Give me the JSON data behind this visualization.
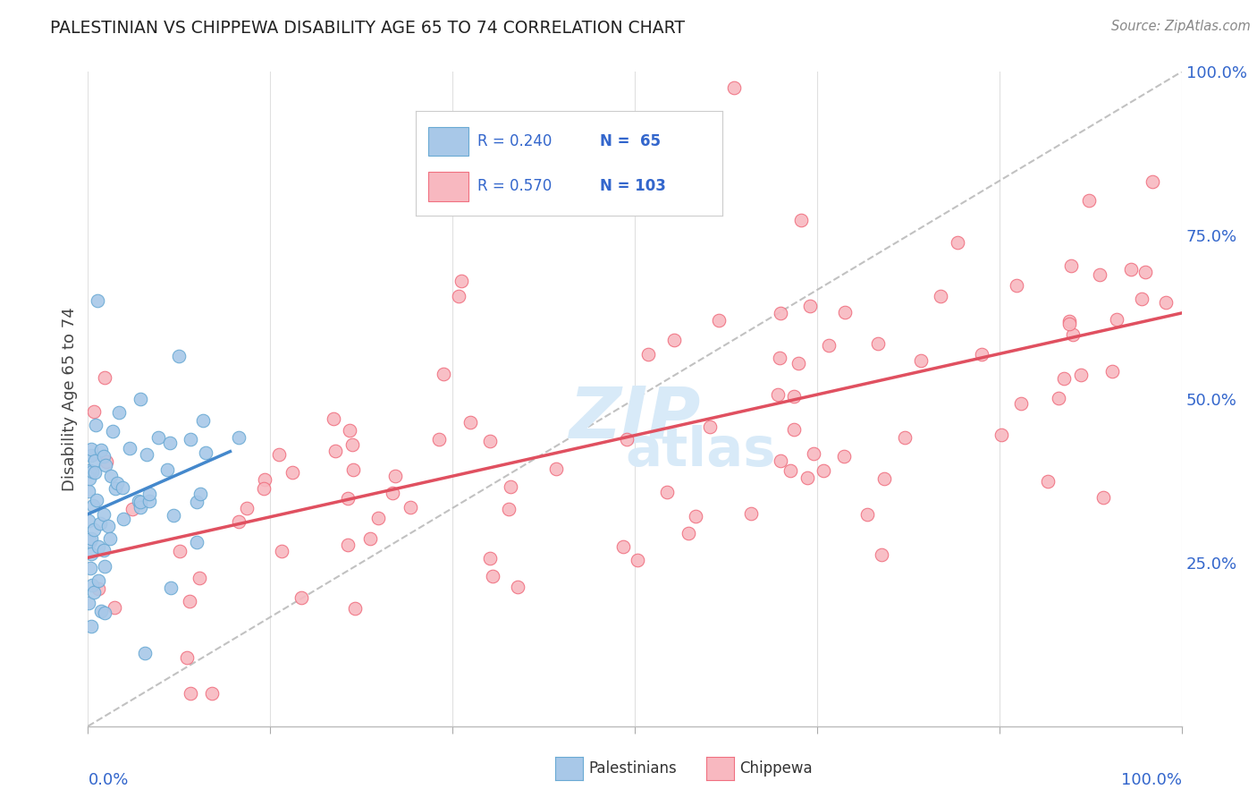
{
  "title": "PALESTINIAN VS CHIPPEWA DISABILITY AGE 65 TO 74 CORRELATION CHART",
  "source": "Source: ZipAtlas.com",
  "ylabel": "Disability Age 65 to 74",
  "legend1_label": "Palestinians",
  "legend2_label": "Chippewa",
  "R1": 0.24,
  "N1": 65,
  "R2": 0.57,
  "N2": 103,
  "blue_fill": "#A8C8E8",
  "blue_edge": "#6AAAD4",
  "pink_fill": "#F8B8C0",
  "pink_edge": "#F07080",
  "pink_line": "#E05060",
  "blue_line": "#4488CC",
  "dash_line": "#BBBBBB",
  "background": "#FFFFFF",
  "grid_color": "#E0E0E0",
  "title_color": "#222222",
  "axis_tick_color": "#3366CC",
  "ylabel_color": "#444444",
  "watermark_color": "#D8EAF8",
  "source_color": "#888888"
}
